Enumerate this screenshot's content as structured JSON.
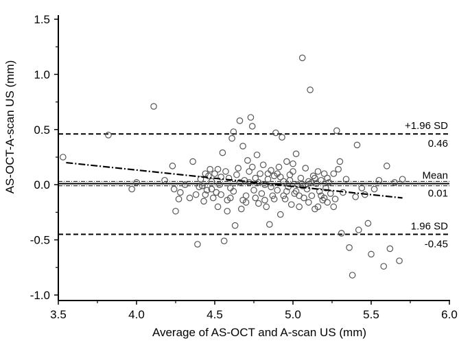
{
  "chart_data": {
    "type": "scatter",
    "title": "",
    "xlabel": "Average of AS-OCT and A-scan US (mm)",
    "ylabel": "AS-OCT-A-scan US (mm)",
    "xlim": [
      3.5,
      6.0
    ],
    "ylim": [
      -1.05,
      1.55
    ],
    "xticks": [
      "3.5",
      "4.0",
      "4.5",
      "5.0",
      "5.5",
      "6.0"
    ],
    "yticks": [
      "-1.0",
      "-0.5",
      "0.0",
      "0.5",
      "1.0",
      "1.5"
    ],
    "grid": false,
    "marker": "open circle",
    "reference_lines": [
      {
        "label_top": "+1.96 SD",
        "label_bottom": "0.46",
        "y": 0.46,
        "style": "dashed"
      },
      {
        "label_top": "Mean",
        "label_bottom": "0.01",
        "y": 0.01,
        "style": "solid"
      },
      {
        "label_top": "1.96 SD",
        "label_bottom": "-0.45",
        "y": -0.45,
        "style": "dashed"
      }
    ],
    "ci_lines": [
      0.03,
      -0.01
    ],
    "regression_line": {
      "style": "dash-dot",
      "x": [
        3.55,
        5.7
      ],
      "y": [
        0.2,
        -0.12
      ]
    },
    "points": [
      [
        3.53,
        0.25
      ],
      [
        3.82,
        0.45
      ],
      [
        3.97,
        -0.04
      ],
      [
        4.0,
        0.02
      ],
      [
        4.11,
        0.71
      ],
      [
        4.18,
        0.04
      ],
      [
        4.23,
        0.17
      ],
      [
        4.24,
        -0.04
      ],
      [
        4.25,
        -0.24
      ],
      [
        4.27,
        -0.13
      ],
      [
        4.28,
        -0.07
      ],
      [
        4.31,
        0.0
      ],
      [
        4.34,
        -0.12
      ],
      [
        4.36,
        0.21
      ],
      [
        4.38,
        -0.09
      ],
      [
        4.39,
        -0.54
      ],
      [
        4.41,
        0.05
      ],
      [
        4.42,
        -0.01
      ],
      [
        4.43,
        -0.15
      ],
      [
        4.44,
        0.1
      ],
      [
        4.45,
        -0.05
      ],
      [
        4.47,
        0.14
      ],
      [
        4.48,
        0.03
      ],
      [
        4.49,
        -0.12
      ],
      [
        4.5,
        0.1
      ],
      [
        4.51,
        -0.07
      ],
      [
        4.52,
        0.14
      ],
      [
        4.53,
        0.0
      ],
      [
        4.54,
        -0.09
      ],
      [
        4.55,
        0.29
      ],
      [
        4.56,
        -0.51
      ],
      [
        4.57,
        0.12
      ],
      [
        4.58,
        -0.24
      ],
      [
        4.59,
        0.06
      ],
      [
        4.6,
        -0.03
      ],
      [
        4.61,
        0.42
      ],
      [
        4.62,
        0.48
      ],
      [
        4.63,
        -0.37
      ],
      [
        4.64,
        0.09
      ],
      [
        4.65,
        0.15
      ],
      [
        4.66,
        0.58
      ],
      [
        4.67,
        -0.22
      ],
      [
        4.68,
        0.35
      ],
      [
        4.69,
        0.04
      ],
      [
        4.7,
        -0.1
      ],
      [
        4.71,
        0.22
      ],
      [
        4.72,
        0.12
      ],
      [
        4.73,
        0.61
      ],
      [
        4.74,
        0.53
      ],
      [
        4.75,
        -0.05
      ],
      [
        4.76,
        0.06
      ],
      [
        4.77,
        0.27
      ],
      [
        4.78,
        -0.17
      ],
      [
        4.79,
        0.1
      ],
      [
        4.8,
        -0.08
      ],
      [
        4.81,
        0.18
      ],
      [
        4.82,
        0.0
      ],
      [
        4.83,
        -0.2
      ],
      [
        4.84,
        0.05
      ],
      [
        4.85,
        -0.36
      ],
      [
        4.86,
        0.13
      ],
      [
        4.87,
        -0.1
      ],
      [
        4.88,
        0.08
      ],
      [
        4.89,
        0.47
      ],
      [
        4.9,
        -0.05
      ],
      [
        4.91,
        0.16
      ],
      [
        4.92,
        -0.27
      ],
      [
        4.93,
        0.43
      ],
      [
        4.94,
        0.03
      ],
      [
        4.95,
        -0.13
      ],
      [
        4.96,
        0.21
      ],
      [
        4.97,
        -0.02
      ],
      [
        4.98,
        0.09
      ],
      [
        4.99,
        -0.18
      ],
      [
        5.0,
        0.12
      ],
      [
        5.01,
        -0.08
      ],
      [
        5.02,
        0.28
      ],
      [
        5.03,
        0.0
      ],
      [
        5.04,
        -0.2
      ],
      [
        5.05,
        0.06
      ],
      [
        5.06,
        1.15
      ],
      [
        5.07,
        -0.12
      ],
      [
        5.08,
        0.15
      ],
      [
        5.09,
        -0.04
      ],
      [
        5.1,
        0.03
      ],
      [
        5.11,
        0.86
      ],
      [
        5.12,
        -0.1
      ],
      [
        5.13,
        0.08
      ],
      [
        5.14,
        -0.22
      ],
      [
        5.15,
        0.01
      ],
      [
        5.16,
        0.12
      ],
      [
        5.17,
        -0.06
      ],
      [
        5.18,
        0.04
      ],
      [
        5.19,
        -0.14
      ],
      [
        5.2,
        0.1
      ],
      [
        5.21,
        -0.03
      ],
      [
        5.22,
        -0.16
      ],
      [
        5.23,
        0.02
      ],
      [
        5.24,
        -0.08
      ],
      [
        5.26,
        0.1
      ],
      [
        5.27,
        -0.13
      ],
      [
        5.28,
        0.49
      ],
      [
        5.29,
        0.14
      ],
      [
        5.3,
        0.21
      ],
      [
        5.31,
        -0.44
      ],
      [
        5.32,
        -0.07
      ],
      [
        5.34,
        0.05
      ],
      [
        5.36,
        -0.57
      ],
      [
        5.38,
        -0.82
      ],
      [
        5.4,
        -0.11
      ],
      [
        5.41,
        0.36
      ],
      [
        5.42,
        -0.41
      ],
      [
        5.44,
        -0.03
      ],
      [
        5.46,
        -0.09
      ],
      [
        5.48,
        -0.35
      ],
      [
        5.5,
        -0.63
      ],
      [
        5.52,
        -0.04
      ],
      [
        5.55,
        0.04
      ],
      [
        5.58,
        -0.74
      ],
      [
        5.6,
        0.17
      ],
      [
        5.62,
        -0.58
      ],
      [
        5.65,
        0.02
      ],
      [
        5.68,
        -0.69
      ],
      [
        5.7,
        0.05
      ],
      [
        4.4,
        -0.02
      ],
      [
        4.46,
        0.08
      ],
      [
        4.52,
        -0.2
      ],
      [
        4.58,
        -0.14
      ],
      [
        4.62,
        -0.06
      ],
      [
        4.68,
        -0.14
      ],
      [
        4.72,
        0.02
      ],
      [
        4.76,
        -0.12
      ],
      [
        4.82,
        -0.14
      ],
      [
        4.86,
        -0.02
      ],
      [
        4.9,
        0.1
      ],
      [
        4.94,
        -0.1
      ],
      [
        4.98,
        0.04
      ],
      [
        5.02,
        -0.06
      ],
      [
        5.06,
        -0.01
      ],
      [
        5.1,
        -0.16
      ],
      [
        5.14,
        0.06
      ],
      [
        5.18,
        -0.1
      ],
      [
        5.22,
        0.06
      ],
      [
        5.26,
        -0.2
      ],
      [
        4.6,
        -0.12
      ],
      [
        4.66,
        0.02
      ],
      [
        4.7,
        -0.16
      ],
      [
        4.74,
        0.16
      ],
      [
        4.78,
        0.02
      ],
      [
        4.84,
        0.1
      ],
      [
        4.88,
        -0.13
      ],
      [
        4.92,
        0.07
      ],
      [
        4.96,
        -0.06
      ],
      [
        5.0,
        0.19
      ],
      [
        5.04,
        -0.1
      ],
      [
        5.08,
        0.0
      ],
      [
        5.12,
        0.02
      ],
      [
        5.16,
        -0.2
      ],
      [
        5.2,
        -0.12
      ],
      [
        4.54,
        0.07
      ],
      [
        4.48,
        -0.04
      ],
      [
        4.44,
        -0.09
      ]
    ]
  }
}
